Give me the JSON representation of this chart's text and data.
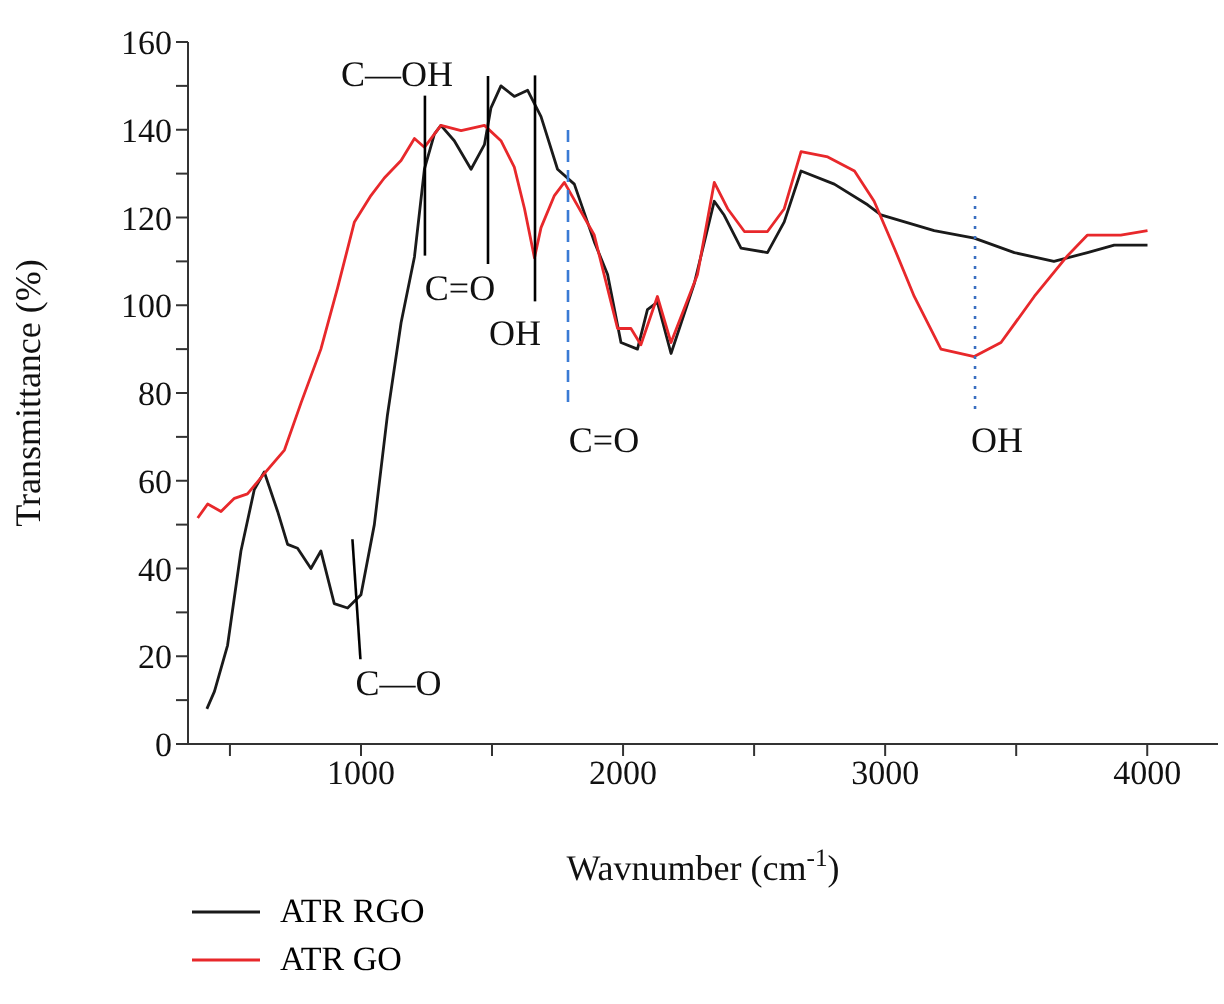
{
  "chart_data": {
    "type": "line",
    "xlabel": "Wavnumber (cm$^{-1}$)",
    "ylabel": "Transmittance (%)",
    "xlim": [
      340,
      4270
    ],
    "xticks": [
      {
        "value": 500,
        "label": null
      },
      1000,
      {
        "value": 1500,
        "label": null
      },
      2000,
      {
        "value": 2500,
        "label": null
      },
      3000,
      {
        "value": 3500,
        "label": null
      },
      4000
    ],
    "ylim": [
      0,
      160
    ],
    "yticks": [
      0,
      {
        "value": 10,
        "label": null
      },
      20,
      {
        "value": 30,
        "label": null
      },
      40,
      {
        "value": 50,
        "label": null
      },
      60,
      {
        "value": 70,
        "label": null
      },
      80,
      {
        "value": 90,
        "label": null
      },
      100,
      {
        "value": 110,
        "label": null
      },
      120,
      {
        "value": 130,
        "label": null
      },
      140,
      {
        "value": 150,
        "label": null
      },
      160
    ],
    "legend": "bottom left",
    "marker": "none",
    "line_style": "solid",
    "series": [
      {
        "name": "ATR RGO",
        "color": "#1a1a1a",
        "x": [
          412,
          441,
          491,
          542,
          593,
          631,
          682,
          720,
          758,
          809,
          847,
          898,
          949,
          1000,
          1051,
          1101,
          1153,
          1204,
          1242,
          1280,
          1305,
          1356,
          1420,
          1471,
          1496,
          1534,
          1585,
          1636,
          1687,
          1750,
          1814,
          1890,
          1941,
          1992,
          2055,
          2093,
          2131,
          2183,
          2272,
          2348,
          2386,
          2450,
          2551,
          2615,
          2679,
          2806,
          2933,
          2984,
          3187,
          3340,
          3493,
          3644,
          3772,
          3874,
          4001
        ],
        "values": [
          8,
          12,
          22.5,
          44,
          58,
          62,
          53,
          45.5,
          44.6,
          40,
          44,
          32,
          31,
          34,
          50,
          75,
          96,
          111,
          131,
          139,
          141,
          137.5,
          131,
          136.6,
          145,
          150,
          147.6,
          149,
          143,
          131,
          127.6,
          114.5,
          107,
          91.5,
          90,
          99,
          100.7,
          89,
          105,
          123.7,
          120.5,
          113,
          112,
          119,
          130.6,
          127.6,
          122.9,
          120.6,
          117,
          115.3,
          112,
          110,
          112,
          113.7,
          113.7
        ]
      },
      {
        "name": "ATR GO",
        "color": "#e8282b",
        "x": [
          377,
          415,
          466,
          517,
          567,
          631,
          708,
          771,
          847,
          911,
          975,
          1038,
          1089,
          1153,
          1204,
          1242,
          1305,
          1382,
          1471,
          1534,
          1585,
          1624,
          1662,
          1687,
          1738,
          1776,
          1890,
          1979,
          2030,
          2068,
          2131,
          2183,
          2284,
          2348,
          2399,
          2463,
          2551,
          2615,
          2679,
          2781,
          2883,
          2958,
          3035,
          3111,
          3213,
          3340,
          3442,
          3569,
          3696,
          3772,
          3899,
          4001
        ],
        "values": [
          51.5,
          54.7,
          53,
          56,
          57,
          61.6,
          67,
          77.7,
          90,
          104,
          119,
          125,
          129,
          133,
          138,
          136,
          141,
          139.8,
          141,
          137.5,
          131.5,
          122,
          110.8,
          117.7,
          125,
          128,
          116,
          94.7,
          94.7,
          91,
          102,
          91.5,
          107,
          128,
          122,
          116.8,
          116.8,
          122,
          135,
          133.8,
          130.6,
          123.7,
          113,
          102,
          90,
          88.3,
          91.5,
          102,
          111.3,
          116,
          116,
          117
        ]
      }
    ],
    "annotations": [
      {
        "text": "C—OH",
        "x": 1244,
        "y": 130
      },
      "C=O",
      {
        "text": "OH",
        "x": 1664,
        "y": 110
      },
      "C=O",
      {
        "text": "OH",
        "x": 3343,
        "y": 88
      },
      {
        "text": "C—O",
        "x": 975,
        "y": 33
      }
    ]
  }
}
